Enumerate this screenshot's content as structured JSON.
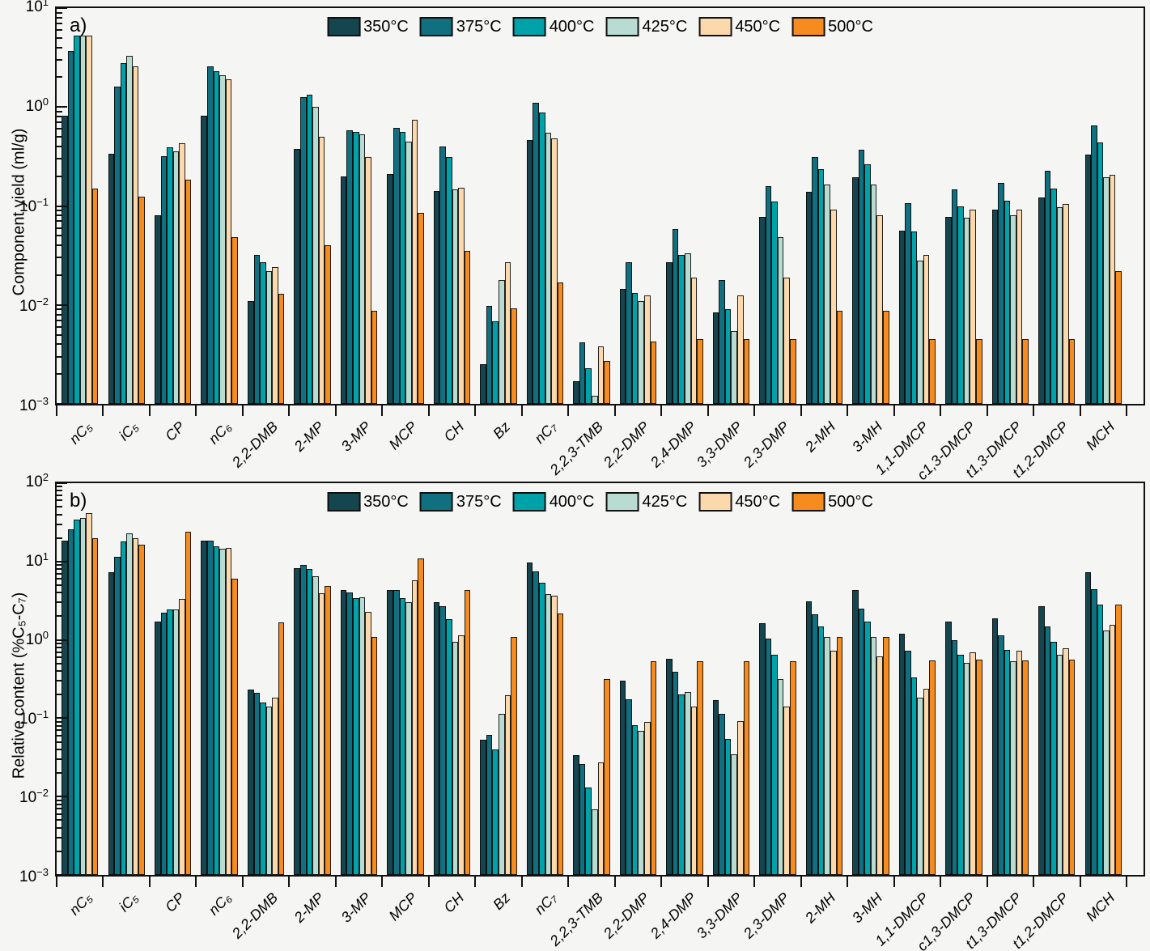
{
  "figure": {
    "background": "#f5f5f3",
    "axis_color": "#111111",
    "temperature_series": [
      "350°C",
      "375°C",
      "400°C",
      "425°C",
      "450°C",
      "500°C"
    ],
    "series_colors": [
      "#15454e",
      "#10707f",
      "#00a2a9",
      "#b9dcd2",
      "#fcd9ad",
      "#f68b1f"
    ]
  },
  "chart_data": [
    {
      "type": "bar",
      "panel": "a",
      "panel_label": "a)",
      "ylabel": "Component yield (ml/g)",
      "xlabel": "",
      "yscale": "log",
      "ylim": [
        0.001,
        10
      ],
      "grid": false,
      "legend_position": "top-center-inside",
      "categories": [
        "nC₅",
        "iC₅",
        "CP",
        "nC₆",
        "2,2-DMB",
        "2-MP",
        "3-MP",
        "MCP",
        "CH",
        "Bz",
        "nC₇",
        "2,2,3-TMB",
        "2,2-DMP",
        "2,4-DMP",
        "3,3-DMP",
        "2,3-DMP",
        "2-MH",
        "3-MH",
        "1,1-DMCP",
        "c1,3-DMCP",
        "t1,3-DMCP",
        "t1,2-DMCP",
        "MCH"
      ],
      "series": [
        {
          "name": "350°C",
          "color": "#15454e",
          "values": [
            0.82,
            0.34,
            0.08,
            0.82,
            0.011,
            0.38,
            0.2,
            0.21,
            0.143,
            0.0025,
            0.46,
            0.0017,
            0.0144,
            0.027,
            0.0084,
            0.078,
            0.14,
            0.195,
            0.056,
            0.078,
            0.092,
            0.123,
            0.33
          ]
        },
        {
          "name": "375°C",
          "color": "#10707f",
          "values": [
            3.7,
            1.6,
            0.32,
            2.6,
            0.032,
            1.26,
            0.58,
            0.62,
            0.4,
            0.0097,
            1.1,
            0.0042,
            0.027,
            0.058,
            0.018,
            0.16,
            0.31,
            0.37,
            0.107,
            0.148,
            0.17,
            0.225,
            0.65
          ]
        },
        {
          "name": "400°C",
          "color": "#00a2a9",
          "values": [
            5.3,
            2.8,
            0.39,
            2.3,
            0.027,
            1.33,
            0.56,
            0.56,
            0.31,
            0.0068,
            0.88,
            0.0023,
            0.0133,
            0.032,
            0.009,
            0.11,
            0.235,
            0.265,
            0.055,
            0.1,
            0.114,
            0.15,
            0.44
          ]
        },
        {
          "name": "425°C",
          "color": "#b9dcd2",
          "values": [
            5.3,
            3.3,
            0.36,
            2.1,
            0.022,
            1.0,
            0.53,
            0.45,
            0.148,
            0.018,
            0.55,
            0.0012,
            0.011,
            0.033,
            0.0055,
            0.048,
            0.165,
            0.165,
            0.028,
            0.076,
            0.08,
            0.097,
            0.196
          ]
        },
        {
          "name": "450°C",
          "color": "#fcd9ad",
          "values": [
            5.3,
            2.6,
            0.43,
            1.9,
            0.024,
            0.5,
            0.31,
            0.74,
            0.154,
            0.027,
            0.48,
            0.0038,
            0.0124,
            0.019,
            0.0125,
            0.019,
            0.092,
            0.08,
            0.032,
            0.092,
            0.092,
            0.105,
            0.207
          ]
        },
        {
          "name": "500°C",
          "color": "#f68b1f",
          "values": [
            0.15,
            0.125,
            0.185,
            0.048,
            0.013,
            0.04,
            0.0088,
            0.086,
            0.035,
            0.0092,
            0.017,
            0.0027,
            0.0043,
            0.0045,
            0.0045,
            0.0045,
            0.0087,
            0.0087,
            0.0045,
            0.0045,
            0.0045,
            0.0045,
            0.022
          ]
        }
      ]
    },
    {
      "type": "bar",
      "panel": "b",
      "panel_label": "b)",
      "ylabel": "Relative content (%C₅-C₇)",
      "xlabel": "",
      "yscale": "log",
      "ylim": [
        0.001,
        100
      ],
      "grid": false,
      "legend_position": "top-center-inside",
      "categories": [
        "nC₅",
        "iC₅",
        "CP",
        "nC₆",
        "2,2-DMB",
        "2-MP",
        "3-MP",
        "MCP",
        "CH",
        "Bz",
        "nC₇",
        "2,2,3-TMB",
        "2,2-DMP",
        "2,4-DMP",
        "3,3-DMP",
        "2,3-DMP",
        "2-MH",
        "3-MH",
        "1,1-DMCP",
        "c1,3-DMCP",
        "t1,3-DMCP",
        "t1,2-DMCP",
        "MCH"
      ],
      "series": [
        {
          "name": "350°C",
          "color": "#15454e",
          "values": [
            18.3,
            7.3,
            1.7,
            18.3,
            0.23,
            8.2,
            4.3,
            4.35,
            3.0,
            0.053,
            9.8,
            0.034,
            0.3,
            0.58,
            0.17,
            1.65,
            3.1,
            4.3,
            1.2,
            1.7,
            1.9,
            2.7,
            7.3
          ]
        },
        {
          "name": "375°C",
          "color": "#10707f",
          "values": [
            26,
            11.5,
            2.2,
            18.5,
            0.21,
            9.0,
            4.0,
            4.3,
            2.7,
            0.062,
            7.5,
            0.026,
            0.175,
            0.39,
            0.115,
            1.05,
            2.1,
            2.5,
            0.73,
            1.0,
            1.13,
            1.5,
            4.45
          ]
        },
        {
          "name": "400°C",
          "color": "#00a2a9",
          "values": [
            34,
            18,
            2.45,
            15.5,
            0.16,
            8.0,
            3.45,
            3.45,
            1.85,
            0.04,
            5.4,
            0.013,
            0.082,
            0.2,
            0.055,
            0.64,
            1.5,
            1.7,
            0.33,
            0.64,
            0.74,
            0.94,
            2.8
          ]
        },
        {
          "name": "425°C",
          "color": "#b9dcd2",
          "values": [
            36,
            23,
            2.45,
            14.5,
            0.14,
            6.5,
            3.5,
            3.05,
            0.95,
            0.113,
            3.8,
            0.0068,
            0.069,
            0.215,
            0.035,
            0.32,
            1.1,
            1.1,
            0.185,
            0.51,
            0.53,
            0.64,
            1.33
          ]
        },
        {
          "name": "450°C",
          "color": "#fcd9ad",
          "values": [
            41,
            20,
            3.3,
            15.0,
            0.185,
            3.9,
            2.3,
            5.7,
            1.15,
            0.195,
            3.7,
            0.027,
            0.09,
            0.14,
            0.092,
            0.14,
            0.72,
            0.62,
            0.235,
            0.7,
            0.72,
            0.79,
            1.57
          ]
        },
        {
          "name": "500°C",
          "color": "#f68b1f",
          "values": [
            20,
            16.3,
            24,
            6.0,
            1.67,
            4.9,
            1.08,
            11,
            4.35,
            1.1,
            2.15,
            0.32,
            0.54,
            0.54,
            0.54,
            0.54,
            1.08,
            1.1,
            0.55,
            0.56,
            0.55,
            0.56,
            2.8
          ]
        }
      ]
    }
  ]
}
